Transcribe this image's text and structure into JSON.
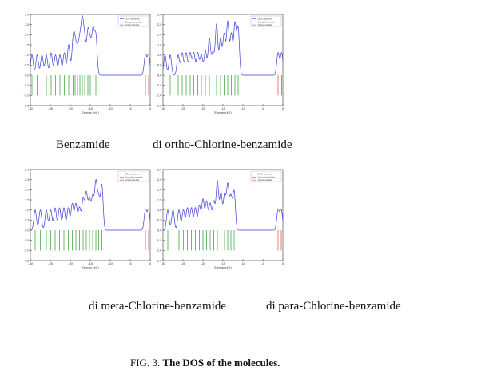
{
  "figure": {
    "label": "FIG. 3.",
    "title": "The DOS of the molecules."
  },
  "captions": {
    "benzamide": "Benzamide",
    "ortho": "di ortho-Chlorine-benzamide",
    "meta": "di meta-Chlorine-benzamide",
    "para": "di para-Chlorine-benzamide"
  },
  "colors": {
    "dos": "#3f3fd8",
    "occupied": "#2e9a2e",
    "unoccupied": "#d84040",
    "axis": "#333333"
  },
  "chart_data": [
    {
      "type": "line",
      "xlabel": "Energy (eV)",
      "ylabel": "",
      "xlim": [
        -30,
        0
      ],
      "ylim": [
        -1.5,
        3.0
      ],
      "xticks": [
        "-30",
        "-25",
        "-20",
        "-15",
        "-10",
        "-5",
        "0"
      ],
      "yticks": [
        "3.0",
        "2.5",
        "2.0",
        "1.5",
        "1.0",
        "0.5",
        "0.0",
        "-0.5",
        "-1.0",
        "-1.5"
      ],
      "legend": [
        "DOS spectrum",
        "Occupied orbitals",
        "Virtual orbitals"
      ],
      "legend_position": "top-right",
      "series": [
        {
          "name": "DOS spectrum",
          "x": [
            -29.6,
            -28.3,
            -27.1,
            -26.0,
            -24.8,
            -23.7,
            -22.6,
            -21.5,
            -20.4,
            -19.3,
            -18.8,
            -18.2,
            -17.6,
            -17.0,
            -16.4,
            -15.6,
            -15.0,
            -14.3,
            -13.6,
            -1.2,
            -0.4
          ],
          "y": [
            1.0,
            1.0,
            1.0,
            1.0,
            1.1,
            1.0,
            1.0,
            1.1,
            1.5,
            1.6,
            1.3,
            1.1,
            1.5,
            2.4,
            1.6,
            2.0,
            1.4,
            2.1,
            1.9,
            1.0,
            1.0
          ]
        },
        {
          "name": "Occupied orbitals",
          "x": [
            -29.6,
            -28.3,
            -27.1,
            -26.0,
            -24.8,
            -23.7,
            -22.6,
            -21.5,
            -20.4,
            -19.3,
            -18.8,
            -18.2,
            -17.6,
            -17.0,
            -16.4,
            -15.6,
            -15.0,
            -14.3,
            -13.6
          ]
        },
        {
          "name": "Virtual orbitals",
          "x": [
            -1.2,
            -0.4
          ]
        }
      ]
    },
    {
      "type": "line",
      "xlabel": "Energy (eV)",
      "ylabel": "",
      "xlim": [
        -30,
        0
      ],
      "ylim": [
        -1.5,
        3.0
      ],
      "xticks": [
        "-30",
        "-25",
        "-20",
        "-15",
        "-10",
        "-5",
        "0"
      ],
      "yticks": [
        "3.0",
        "2.5",
        "2.0",
        "1.5",
        "1.0",
        "0.5",
        "0.0",
        "-0.5",
        "-1.0",
        "-1.5"
      ],
      "legend": [
        "DOS spectrum",
        "Occupied orbitals",
        "Virtual orbitals"
      ],
      "legend_position": "top-right",
      "series": [
        {
          "name": "DOS spectrum",
          "x": [
            -29.5,
            -28.2,
            -26.2,
            -25.2,
            -24.2,
            -23.2,
            -22.3,
            -21.3,
            -20.4,
            -19.4,
            -18.4,
            -17.5,
            -16.6,
            -15.6,
            -14.7,
            -13.8,
            -12.9,
            -12.0,
            -11.2,
            -1.2,
            -0.3
          ],
          "y": [
            1.0,
            1.0,
            1.0,
            1.1,
            1.1,
            1.1,
            1.1,
            1.1,
            1.0,
            1.2,
            1.8,
            1.1,
            2.5,
            1.8,
            2.0,
            2.6,
            2.0,
            2.5,
            2.3,
            1.1,
            1.1
          ]
        },
        {
          "name": "Occupied orbitals",
          "x": [
            -29.5,
            -28.2,
            -26.2,
            -25.2,
            -24.2,
            -23.2,
            -22.3,
            -21.3,
            -20.4,
            -19.4,
            -18.4,
            -17.5,
            -16.6,
            -15.6,
            -14.7,
            -13.8,
            -12.9,
            -12.0,
            -11.2
          ]
        },
        {
          "name": "Virtual orbitals",
          "x": [
            -1.2,
            -0.3
          ]
        }
      ]
    },
    {
      "type": "line",
      "xlabel": "Energy (eV)",
      "ylabel": "",
      "xlim": [
        -30,
        0
      ],
      "ylim": [
        -1.5,
        3.0
      ],
      "xticks": [
        "-30",
        "-25",
        "-20",
        "-15",
        "-10",
        "-5",
        "0"
      ],
      "yticks": [
        "3.0",
        "2.5",
        "2.0",
        "1.5",
        "1.0",
        "0.5",
        "0.0",
        "-0.5",
        "-1.0",
        "-1.5"
      ],
      "legend": [
        "DOS spectrum",
        "Occupied orbitals",
        "Virtual orbitals"
      ],
      "legend_position": "top-right",
      "series": [
        {
          "name": "DOS spectrum",
          "x": [
            -28.8,
            -27.5,
            -26.0,
            -24.9,
            -23.8,
            -22.7,
            -21.6,
            -20.5,
            -19.5,
            -18.6,
            -17.7,
            -16.8,
            -16.0,
            -15.2,
            -14.4,
            -13.6,
            -12.9,
            -12.1,
            -1.2,
            -0.4
          ],
          "y": [
            1.0,
            1.0,
            1.0,
            1.0,
            1.1,
            1.1,
            1.1,
            1.1,
            1.3,
            1.3,
            1.1,
            1.5,
            1.8,
            1.5,
            1.6,
            2.3,
            1.5,
            2.2,
            1.0,
            1.0
          ]
        },
        {
          "name": "Occupied orbitals",
          "x": [
            -28.8,
            -27.5,
            -26.0,
            -24.9,
            -23.8,
            -22.7,
            -21.6,
            -20.5,
            -19.5,
            -18.6,
            -17.7,
            -16.8,
            -16.0,
            -15.2,
            -14.4,
            -13.6,
            -12.9,
            -12.1
          ]
        },
        {
          "name": "Virtual orbitals",
          "x": [
            -1.2,
            -0.4
          ]
        }
      ]
    },
    {
      "type": "line",
      "xlabel": "Energy (eV)",
      "ylabel": "",
      "xlim": [
        -30,
        0
      ],
      "ylim": [
        -1.5,
        3.0
      ],
      "xticks": [
        "-30",
        "-25",
        "-20",
        "-15",
        "-10",
        "-5",
        "0"
      ],
      "yticks": [
        "3.0",
        "2.5",
        "2.0",
        "1.5",
        "1.0",
        "0.5",
        "0.0",
        "-0.5",
        "-1.0",
        "-1.5"
      ],
      "legend": [
        "DOS spectrum",
        "Occupied orbitals",
        "Virtual orbitals"
      ],
      "legend_position": "top-right",
      "series": [
        {
          "name": "DOS spectrum",
          "x": [
            -28.8,
            -27.5,
            -26.0,
            -24.9,
            -23.9,
            -22.9,
            -21.9,
            -20.9,
            -20.0,
            -19.1,
            -18.2,
            -17.3,
            -16.4,
            -15.5,
            -14.6,
            -13.8,
            -13.0,
            -12.2,
            -1.2,
            -0.4
          ],
          "y": [
            1.0,
            1.0,
            1.0,
            1.0,
            1.1,
            1.1,
            1.1,
            1.2,
            1.5,
            1.4,
            1.3,
            1.4,
            2.4,
            1.8,
            1.7,
            2.2,
            1.6,
            1.9,
            1.0,
            1.0
          ]
        },
        {
          "name": "Occupied orbitals",
          "x": [
            -28.8,
            -27.5,
            -26.0,
            -24.9,
            -23.9,
            -22.9,
            -21.9,
            -20.9,
            -20.0,
            -19.1,
            -18.2,
            -17.3,
            -16.4,
            -15.5,
            -14.6,
            -13.8,
            -13.0,
            -12.2
          ]
        },
        {
          "name": "Virtual orbitals",
          "x": [
            -1.2,
            -0.4
          ]
        }
      ]
    }
  ]
}
